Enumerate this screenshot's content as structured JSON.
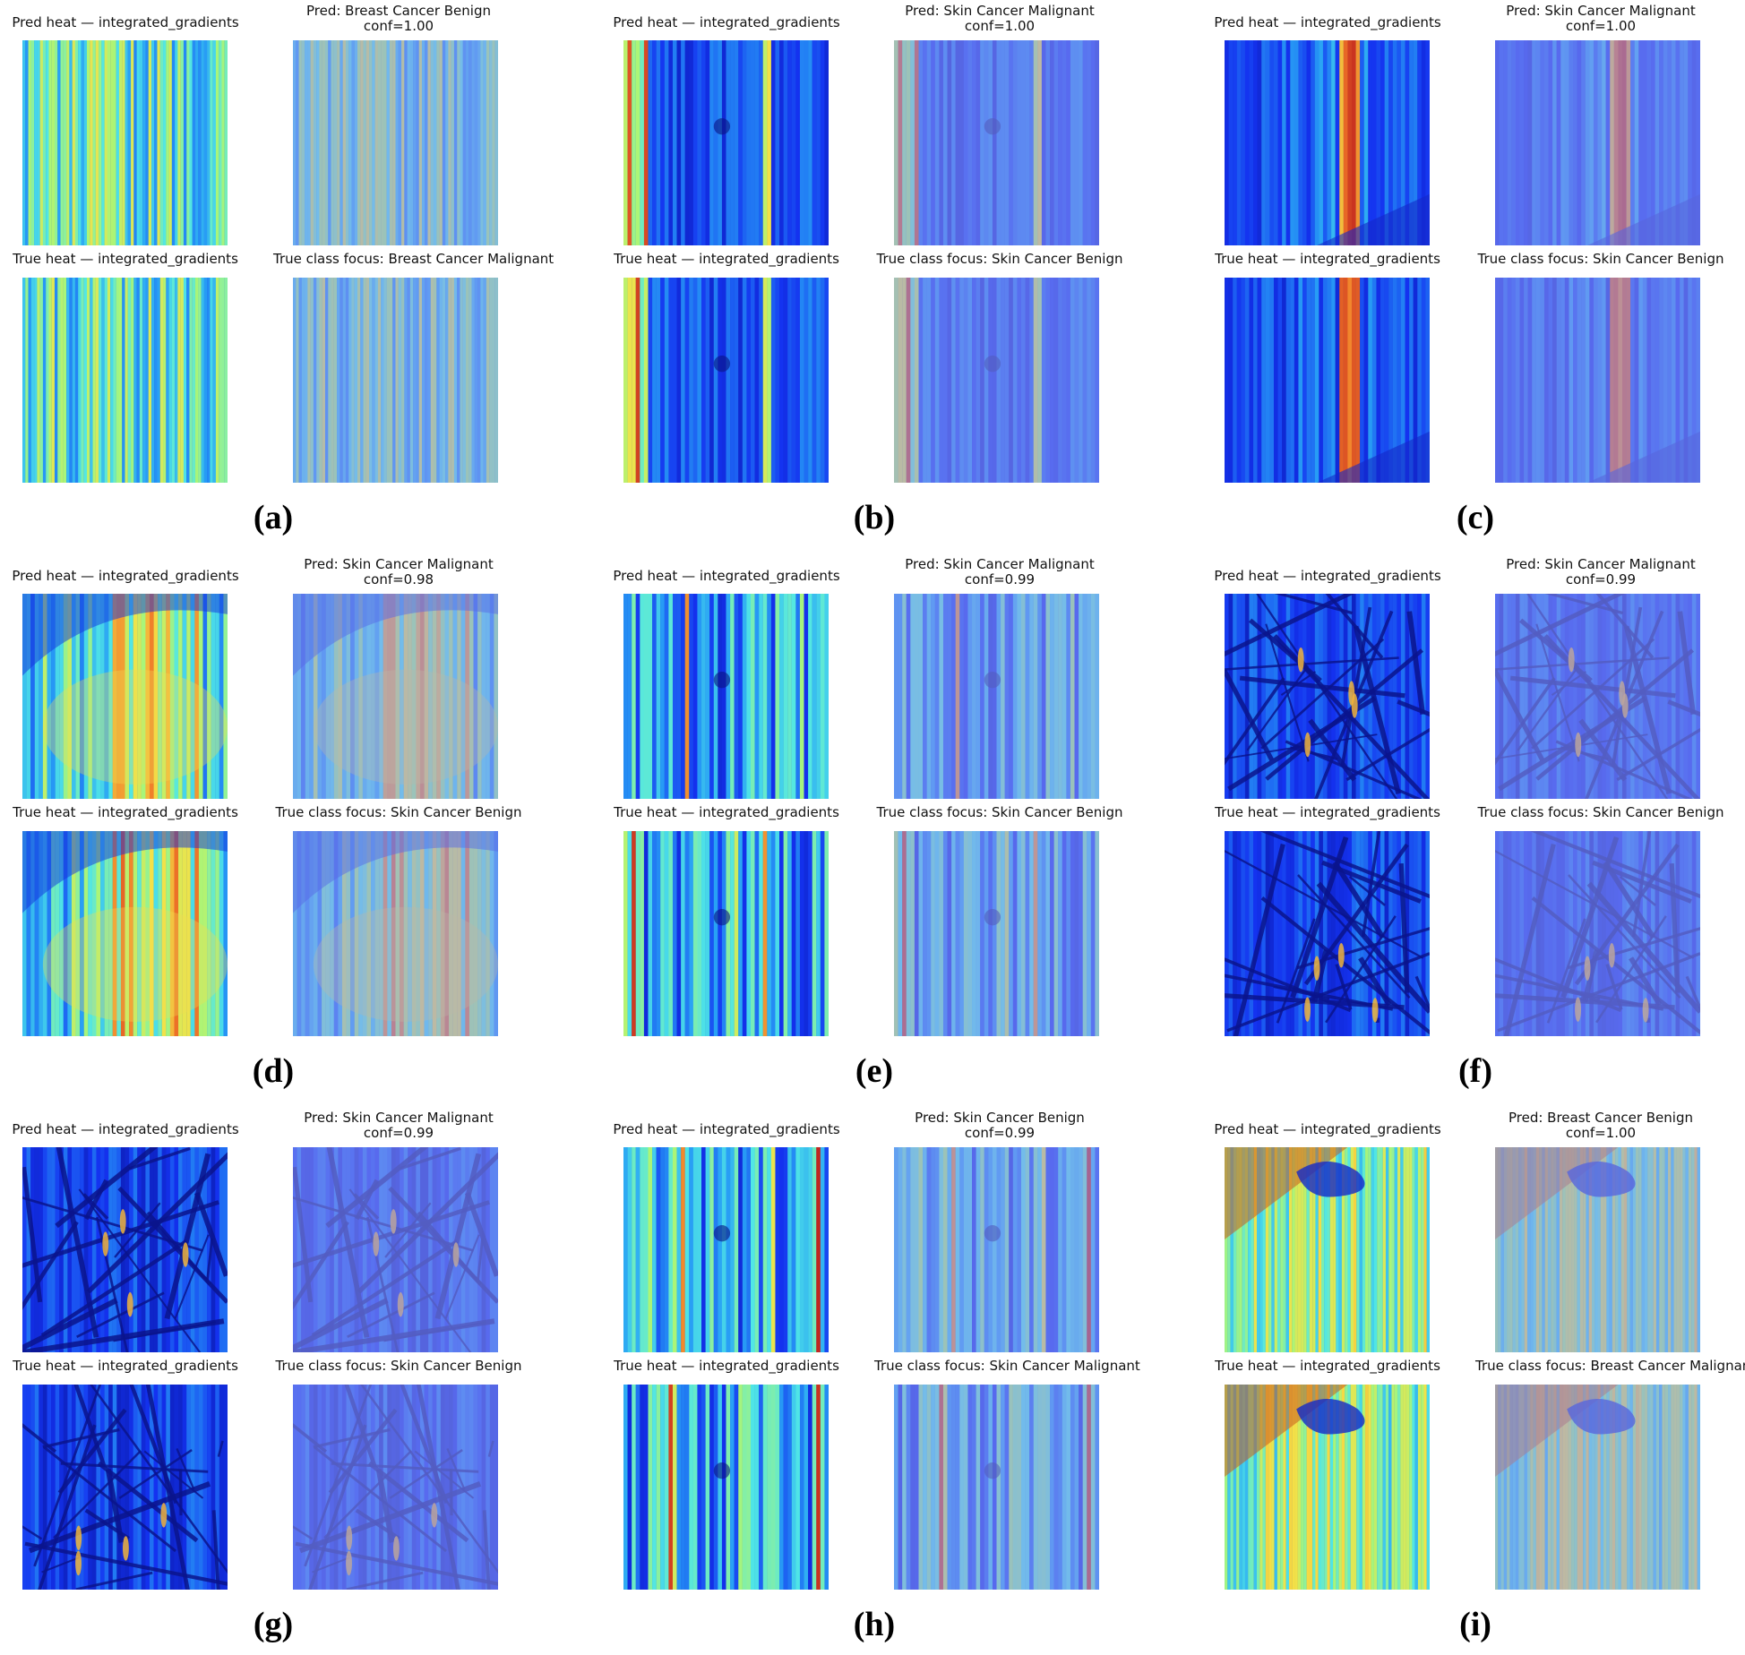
{
  "figure": {
    "panels": [
      {
        "caption": "(a)",
        "style": "noise",
        "palette": "jet",
        "pred_heat_title": "Pred heat — integrated_gradients",
        "pred_title": "Pred: Breast Cancer Benign",
        "pred_conf": "conf=1.00",
        "true_heat_title": "True heat — integrated_gradients",
        "true_title": "True class focus: Breast Cancer Malignant"
      },
      {
        "caption": "(b)",
        "style": "edge",
        "palette": "jet",
        "pred_heat_title": "Pred heat — integrated_gradients",
        "pred_title": "Pred: Skin Cancer Malignant",
        "pred_conf": "conf=1.00",
        "true_heat_title": "True heat — integrated_gradients",
        "true_title": "True class focus: Skin Cancer Benign"
      },
      {
        "caption": "(c)",
        "style": "center",
        "palette": "jet",
        "pred_heat_title": "Pred heat — integrated_gradients",
        "pred_title": "Pred: Skin Cancer Malignant",
        "pred_conf": "conf=1.00",
        "true_heat_title": "True heat — integrated_gradients",
        "true_title": "True class focus: Skin Cancer Benign"
      },
      {
        "caption": "(d)",
        "style": "blob",
        "palette": "jet",
        "pred_heat_title": "Pred heat — integrated_gradients",
        "pred_title": "Pred: Skin Cancer Malignant",
        "pred_conf": "conf=0.98",
        "true_heat_title": "True heat — integrated_gradients",
        "true_title": "True class focus: Skin Cancer Benign"
      },
      {
        "caption": "(e)",
        "style": "stripes",
        "palette": "jet",
        "pred_heat_title": "Pred heat — integrated_gradients",
        "pred_title": "Pred: Skin Cancer Malignant",
        "pred_conf": "conf=0.99",
        "true_heat_title": "True heat — integrated_gradients",
        "true_title": "True class focus: Skin Cancer Benign"
      },
      {
        "caption": "(f)",
        "style": "mesh",
        "palette": "jet",
        "pred_heat_title": "Pred heat — integrated_gradients",
        "pred_title": "Pred: Skin Cancer Malignant",
        "pred_conf": "conf=0.99",
        "true_heat_title": "True heat — integrated_gradients",
        "true_title": "True class focus: Skin Cancer Benign"
      },
      {
        "caption": "(g)",
        "style": "mesh",
        "palette": "jet",
        "pred_heat_title": "Pred heat — integrated_gradients",
        "pred_title": "Pred: Skin Cancer Malignant",
        "pred_conf": "conf=0.99",
        "true_heat_title": "True heat — integrated_gradients",
        "true_title": "True class focus: Skin Cancer Benign"
      },
      {
        "caption": "(h)",
        "style": "stripes",
        "palette": "jet",
        "pred_heat_title": "Pred heat — integrated_gradients",
        "pred_title": "Pred: Skin Cancer Benign",
        "pred_conf": "conf=0.99",
        "true_heat_title": "True heat — integrated_gradients",
        "true_title": "True class focus: Skin Cancer Malignant"
      },
      {
        "caption": "(i)",
        "style": "texture",
        "palette": "jet",
        "pred_heat_title": "Pred heat — integrated_gradients",
        "pred_title": "Pred: Breast Cancer Benign",
        "pred_conf": "conf=1.00",
        "true_heat_title": "True heat — integrated_gradients",
        "true_title": "True class focus: Breast Cancer Malignant"
      }
    ],
    "colors": {
      "deep_blue": "#0a1fb0",
      "blue": "#1a3cf0",
      "cyan": "#3fd0f0",
      "green": "#a8f07a",
      "yellow": "#f5e050",
      "red": "#c8302a",
      "overlay_tint": "#8f99ef"
    }
  }
}
